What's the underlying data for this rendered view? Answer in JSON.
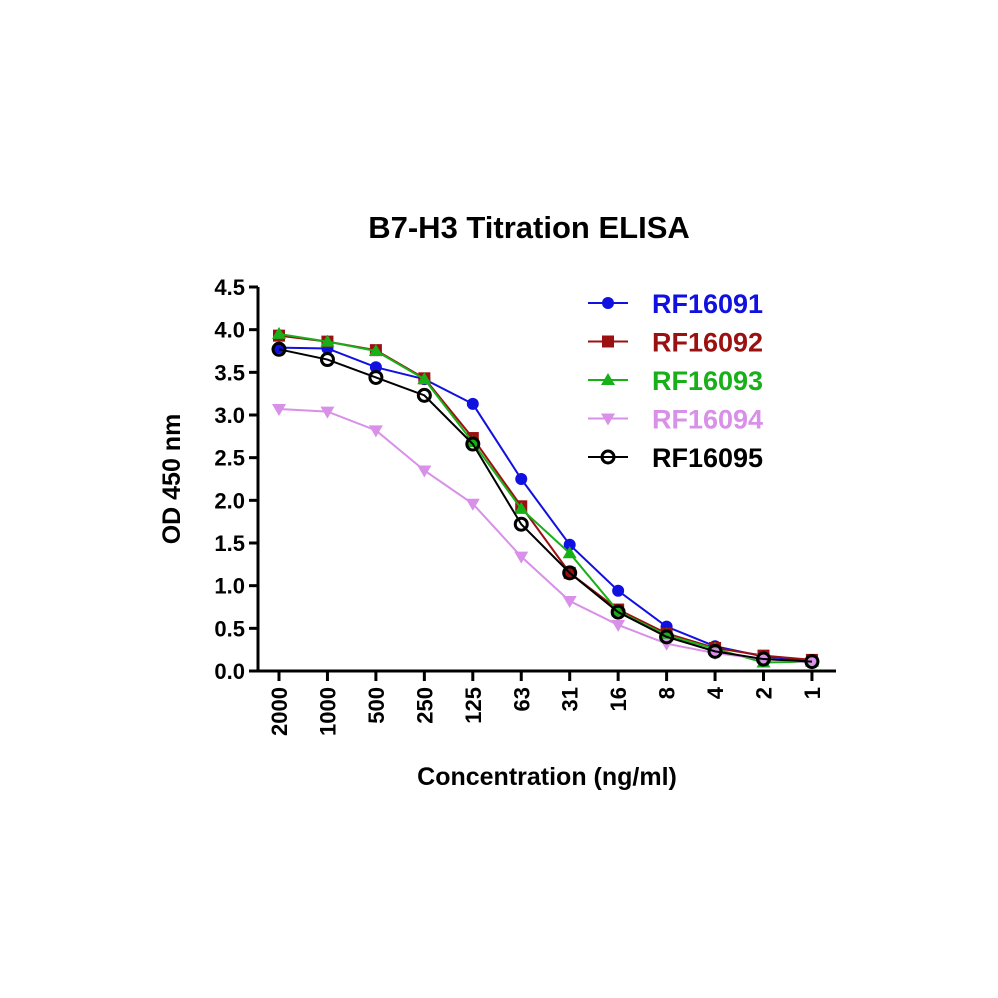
{
  "chart_data": {
    "type": "line",
    "title": "B7-H3 Titration ELISA",
    "xlabel": "Concentration (ng/ml)",
    "ylabel": "OD 450 nm",
    "categories": [
      "2000",
      "1000",
      "500",
      "250",
      "125",
      "63",
      "31",
      "16",
      "8",
      "4",
      "2",
      "1"
    ],
    "ylim": [
      0,
      4.5
    ],
    "yticks": [
      "0.0",
      "0.5",
      "1.0",
      "1.5",
      "2.0",
      "2.5",
      "3.0",
      "3.5",
      "4.0",
      "4.5"
    ],
    "grid": false,
    "legend": "top-right",
    "series": [
      {
        "name": "RF16091",
        "color": "#1010e0",
        "marker": "circle",
        "values": [
          3.79,
          3.78,
          3.56,
          3.42,
          3.13,
          2.25,
          1.48,
          0.94,
          0.52,
          0.29,
          0.17,
          0.12
        ]
      },
      {
        "name": "RF16092",
        "color": "#9b1010",
        "marker": "square",
        "values": [
          3.93,
          3.86,
          3.76,
          3.43,
          2.73,
          1.93,
          1.15,
          0.72,
          0.44,
          0.27,
          0.18,
          0.13
        ]
      },
      {
        "name": "RF16093",
        "color": "#18b018",
        "marker": "triangle-up",
        "values": [
          3.95,
          3.86,
          3.75,
          3.42,
          2.68,
          1.9,
          1.38,
          0.7,
          0.42,
          0.26,
          0.1,
          0.11
        ]
      },
      {
        "name": "RF16094",
        "color": "#d890e8",
        "marker": "triangle-down",
        "values": [
          3.07,
          3.04,
          2.82,
          2.35,
          1.96,
          1.34,
          0.82,
          0.54,
          0.32,
          0.21,
          0.14,
          0.1
        ]
      },
      {
        "name": "RF16095",
        "color": "#000000",
        "marker": "open-circle",
        "values": [
          3.77,
          3.65,
          3.44,
          3.23,
          2.66,
          1.72,
          1.15,
          0.69,
          0.4,
          0.23,
          0.14,
          0.11
        ]
      }
    ]
  }
}
